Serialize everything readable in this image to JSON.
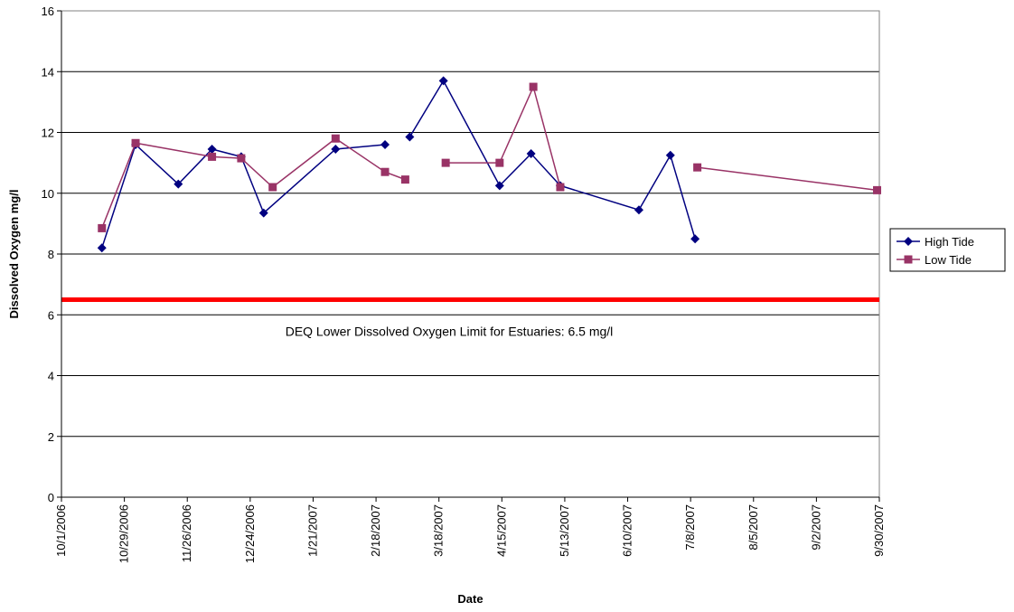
{
  "chart_data": {
    "type": "line",
    "xlabel": "Date",
    "ylabel": "Dissolved Oxygen mg/l",
    "ylim": [
      0,
      16
    ],
    "yticks": [
      0,
      2,
      4,
      6,
      8,
      10,
      12,
      14,
      16
    ],
    "xlim": [
      "2006-10-01",
      "2007-09-30"
    ],
    "xticks": [
      "10/1/2006",
      "10/29/2006",
      "11/26/2006",
      "12/24/2006",
      "1/21/2007",
      "2/18/2007",
      "3/18/2007",
      "4/15/2007",
      "5/13/2007",
      "6/10/2007",
      "7/8/2007",
      "8/5/2007",
      "9/2/2007",
      "9/30/2007"
    ],
    "grid": "horizontal",
    "legend_position": "right",
    "reference_line": {
      "value": 6.5,
      "color": "#ff0000",
      "label": "DEQ Lower Dissolved Oxygen Limit for Estuaries: 6.5 mg/l"
    },
    "series": [
      {
        "name": "High Tide",
        "color": "#000080",
        "marker": "diamond",
        "points": [
          [
            "2006-10-19",
            8.2
          ],
          [
            "2006-11-03",
            11.6
          ],
          [
            "2006-11-22",
            10.3
          ],
          [
            "2006-12-07",
            11.45
          ],
          [
            "2006-12-20",
            11.2
          ],
          [
            "2006-12-30",
            9.35
          ],
          [
            "2007-01-31",
            11.45
          ],
          [
            "2007-02-22",
            11.6
          ],
          null,
          [
            "2007-03-05",
            11.85
          ],
          [
            "2007-03-20",
            13.7
          ],
          [
            "2007-04-14",
            10.25
          ],
          [
            "2007-04-28",
            11.3
          ],
          [
            "2007-05-11",
            10.25
          ],
          [
            "2007-06-15",
            9.45
          ],
          [
            "2007-06-29",
            11.25
          ],
          [
            "2007-07-10",
            8.5
          ]
        ]
      },
      {
        "name": "Low Tide",
        "color": "#993366",
        "marker": "square",
        "points": [
          [
            "2006-10-19",
            8.85
          ],
          [
            "2006-11-03",
            11.65
          ],
          [
            "2006-12-07",
            11.2
          ],
          [
            "2006-12-20",
            11.15
          ],
          [
            "2007-01-03",
            10.2
          ],
          [
            "2007-01-31",
            11.8
          ],
          [
            "2007-02-22",
            10.7
          ],
          [
            "2007-03-03",
            10.45
          ],
          null,
          [
            "2007-03-21",
            11.0
          ],
          [
            "2007-04-14",
            11.0
          ],
          [
            "2007-04-29",
            13.5
          ],
          [
            "2007-05-11",
            10.2
          ],
          null,
          [
            "2007-07-11",
            10.85
          ],
          [
            "2007-09-29",
            10.1
          ]
        ]
      }
    ]
  }
}
